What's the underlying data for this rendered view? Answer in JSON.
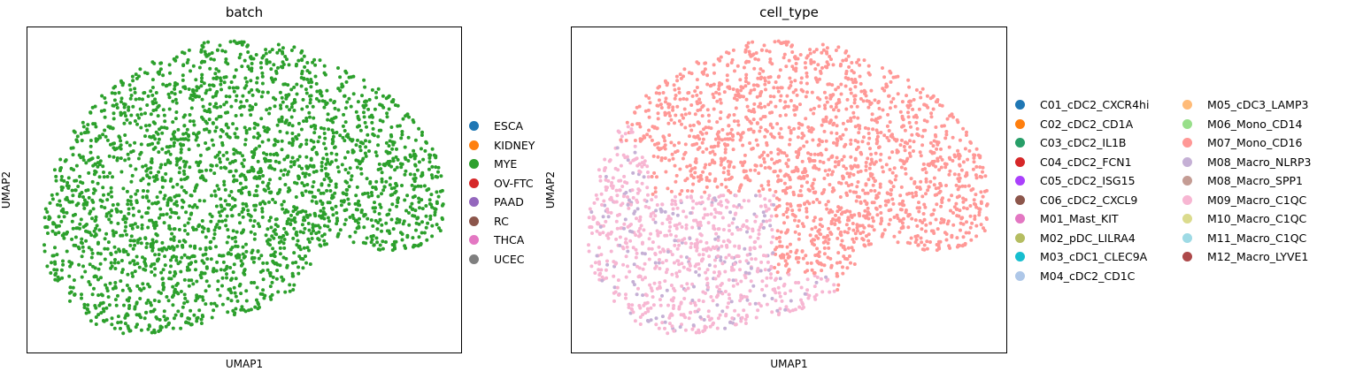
{
  "chart_data": [
    {
      "type": "scatter",
      "title": "batch",
      "xlabel": "UMAP1",
      "ylabel": "UMAP2",
      "grid": false,
      "legend": "right",
      "legend_entries": [
        {
          "name": "ESCA",
          "color": "#1f77b4"
        },
        {
          "name": "KIDNEY",
          "color": "#ff7f0e"
        },
        {
          "name": "MYE",
          "color": "#2ca02c"
        },
        {
          "name": "OV-FTC",
          "color": "#d62728"
        },
        {
          "name": "PAAD",
          "color": "#9467bd"
        },
        {
          "name": "RC",
          "color": "#8c564b"
        },
        {
          "name": "THCA",
          "color": "#e377c2"
        },
        {
          "name": "UCEC",
          "color": "#7f7f7f"
        }
      ],
      "visible_series": [
        "MYE"
      ]
    },
    {
      "type": "scatter",
      "title": "cell_type",
      "xlabel": "UMAP1",
      "ylabel": "UMAP2",
      "grid": false,
      "legend": "right",
      "legend_entries": [
        {
          "name": "C01_cDC2_CXCR4hi",
          "color": "#1f77b4"
        },
        {
          "name": "C02_cDC2_CD1A",
          "color": "#ff7f0e"
        },
        {
          "name": "C03_cDC2_IL1B",
          "color": "#279e68"
        },
        {
          "name": "C04_cDC2_FCN1",
          "color": "#d62728"
        },
        {
          "name": "C05_cDC2_ISG15",
          "color": "#aa40fc"
        },
        {
          "name": "C06_cDC2_CXCL9",
          "color": "#8c564b"
        },
        {
          "name": "M01_Mast_KIT",
          "color": "#e377c2"
        },
        {
          "name": "M02_pDC_LILRA4",
          "color": "#b5bd61"
        },
        {
          "name": "M03_cDC1_CLEC9A",
          "color": "#17becf"
        },
        {
          "name": "M04_cDC2_CD1C",
          "color": "#aec7e8"
        },
        {
          "name": "M05_cDC3_LAMP3",
          "color": "#ffbb78"
        },
        {
          "name": "M06_Mono_CD14",
          "color": "#98df8a"
        },
        {
          "name": "M07_Mono_CD16",
          "color": "#ff9896"
        },
        {
          "name": "M08_Macro_NLRP3",
          "color": "#c5b0d5"
        },
        {
          "name": "M08_Macro_SPP1",
          "color": "#c49c94"
        },
        {
          "name": "M09_Macro_C1QC",
          "color": "#f7b6d2"
        },
        {
          "name": "M10_Macro_C1QC",
          "color": "#dbdb8d"
        },
        {
          "name": "M11_Macro_C1QC",
          "color": "#9edae5"
        },
        {
          "name": "M12_Macro_LYVE1",
          "color": "#ad494a"
        }
      ],
      "visible_series": [
        "M07_Mono_CD16",
        "M09_Macro_C1QC",
        "M08_Macro_NLRP3"
      ]
    }
  ]
}
